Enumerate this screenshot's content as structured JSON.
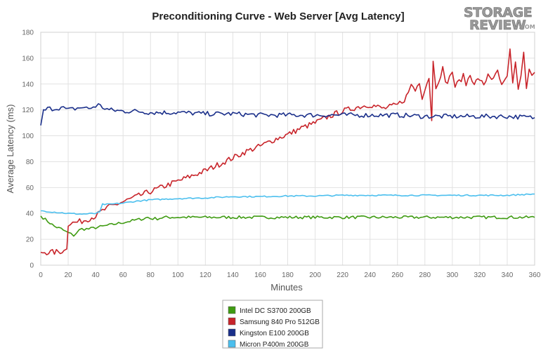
{
  "chart_data": {
    "type": "line",
    "title": "Preconditioning Curve - Web Server [Avg Latency]",
    "xlabel": "Minutes",
    "ylabel": "Average Latency (ms)",
    "xlim": [
      0,
      360
    ],
    "ylim": [
      0,
      180
    ],
    "x_ticks": [
      0,
      20,
      40,
      60,
      80,
      100,
      120,
      140,
      160,
      180,
      200,
      220,
      240,
      260,
      280,
      300,
      320,
      340,
      360
    ],
    "y_ticks": [
      0,
      20,
      40,
      60,
      80,
      100,
      120,
      140,
      160,
      180
    ],
    "grid": "both",
    "legend_position": "bottom-center",
    "series": [
      {
        "name": "Intel DC S3700 200GB",
        "color": "#3f9b12",
        "points": [
          [
            0,
            38
          ],
          [
            5,
            34
          ],
          [
            10,
            30
          ],
          [
            15,
            28
          ],
          [
            18,
            26
          ],
          [
            20,
            25
          ],
          [
            22,
            24
          ],
          [
            24,
            23
          ],
          [
            26,
            25
          ],
          [
            28,
            27
          ],
          [
            30,
            28
          ],
          [
            35,
            28
          ],
          [
            40,
            29
          ],
          [
            45,
            30
          ],
          [
            50,
            31
          ],
          [
            55,
            32
          ],
          [
            60,
            33
          ],
          [
            65,
            34
          ],
          [
            70,
            35
          ],
          [
            75,
            36
          ],
          [
            78,
            37
          ],
          [
            80,
            36
          ],
          [
            85,
            36
          ],
          [
            90,
            37
          ],
          [
            100,
            37
          ],
          [
            120,
            37
          ],
          [
            140,
            37
          ],
          [
            160,
            37
          ],
          [
            180,
            37
          ],
          [
            200,
            37
          ],
          [
            220,
            37
          ],
          [
            240,
            37
          ],
          [
            260,
            37
          ],
          [
            280,
            37
          ],
          [
            300,
            37
          ],
          [
            320,
            37
          ],
          [
            340,
            37
          ],
          [
            360,
            37
          ]
        ]
      },
      {
        "name": "Samsung 840 Pro 512GB",
        "color": "#c8242a",
        "points": [
          [
            0,
            10
          ],
          [
            10,
            10
          ],
          [
            17,
            11
          ],
          [
            19,
            14
          ],
          [
            20,
            32
          ],
          [
            25,
            33
          ],
          [
            30,
            34
          ],
          [
            40,
            38
          ],
          [
            45,
            42
          ],
          [
            50,
            45
          ],
          [
            60,
            49
          ],
          [
            70,
            53
          ],
          [
            80,
            57
          ],
          [
            90,
            61
          ],
          [
            100,
            65
          ],
          [
            110,
            69
          ],
          [
            120,
            73
          ],
          [
            130,
            78
          ],
          [
            140,
            83
          ],
          [
            150,
            88
          ],
          [
            160,
            92
          ],
          [
            170,
            97
          ],
          [
            180,
            101
          ],
          [
            190,
            106
          ],
          [
            200,
            110
          ],
          [
            210,
            115
          ],
          [
            220,
            119
          ],
          [
            230,
            122
          ],
          [
            240,
            124
          ],
          [
            250,
            121
          ],
          [
            260,
            124
          ],
          [
            265,
            128
          ],
          [
            268,
            133
          ],
          [
            270,
            140
          ],
          [
            273,
            135
          ],
          [
            276,
            142
          ],
          [
            278,
            130
          ],
          [
            280,
            137
          ],
          [
            283,
            145
          ],
          [
            285,
            113
          ],
          [
            286,
            157
          ],
          [
            288,
            138
          ],
          [
            290,
            143
          ],
          [
            293,
            152
          ],
          [
            295,
            140
          ],
          [
            298,
            145
          ],
          [
            300,
            150
          ],
          [
            302,
            138
          ],
          [
            305,
            142
          ],
          [
            308,
            146
          ],
          [
            310,
            140
          ],
          [
            313,
            147
          ],
          [
            316,
            141
          ],
          [
            320,
            144
          ],
          [
            323,
            138
          ],
          [
            326,
            148
          ],
          [
            330,
            143
          ],
          [
            333,
            150
          ],
          [
            336,
            138
          ],
          [
            340,
            145
          ],
          [
            342,
            165
          ],
          [
            344,
            140
          ],
          [
            346,
            158
          ],
          [
            348,
            135
          ],
          [
            350,
            147
          ],
          [
            352,
            163
          ],
          [
            354,
            138
          ],
          [
            356,
            150
          ],
          [
            358,
            146
          ],
          [
            360,
            149
          ]
        ]
      },
      {
        "name": "Kingston E100 200GB",
        "color": "#1a2f8a",
        "points": [
          [
            0,
            108
          ],
          [
            2,
            119
          ],
          [
            5,
            121
          ],
          [
            10,
            121
          ],
          [
            15,
            122
          ],
          [
            20,
            120
          ],
          [
            25,
            121
          ],
          [
            30,
            122
          ],
          [
            35,
            121
          ],
          [
            40,
            123
          ],
          [
            42,
            124
          ],
          [
            45,
            122
          ],
          [
            50,
            120
          ],
          [
            60,
            119
          ],
          [
            70,
            119
          ],
          [
            80,
            118
          ],
          [
            90,
            118
          ],
          [
            100,
            118
          ],
          [
            120,
            117
          ],
          [
            140,
            117
          ],
          [
            160,
            116
          ],
          [
            180,
            116
          ],
          [
            200,
            116
          ],
          [
            220,
            116
          ],
          [
            240,
            116
          ],
          [
            260,
            116
          ],
          [
            280,
            115
          ],
          [
            300,
            115
          ],
          [
            320,
            115
          ],
          [
            340,
            115
          ],
          [
            360,
            114
          ]
        ]
      },
      {
        "name": "Micron P400m 200GB",
        "color": "#4bbfee",
        "points": [
          [
            0,
            42
          ],
          [
            10,
            41
          ],
          [
            20,
            40
          ],
          [
            30,
            39.5
          ],
          [
            40,
            40
          ],
          [
            43,
            41
          ],
          [
            45,
            47
          ],
          [
            50,
            47
          ],
          [
            60,
            48
          ],
          [
            70,
            49.5
          ],
          [
            80,
            50.5
          ],
          [
            90,
            51
          ],
          [
            100,
            51.5
          ],
          [
            120,
            52
          ],
          [
            140,
            53
          ],
          [
            160,
            53
          ],
          [
            180,
            53.5
          ],
          [
            200,
            53.5
          ],
          [
            220,
            54
          ],
          [
            240,
            54
          ],
          [
            260,
            54
          ],
          [
            280,
            54
          ],
          [
            300,
            54
          ],
          [
            320,
            54
          ],
          [
            340,
            54
          ],
          [
            360,
            55
          ]
        ]
      }
    ]
  },
  "logo": {
    "line1": "STORAGE",
    "line2": "REVIEW",
    "suffix": ".COM"
  }
}
